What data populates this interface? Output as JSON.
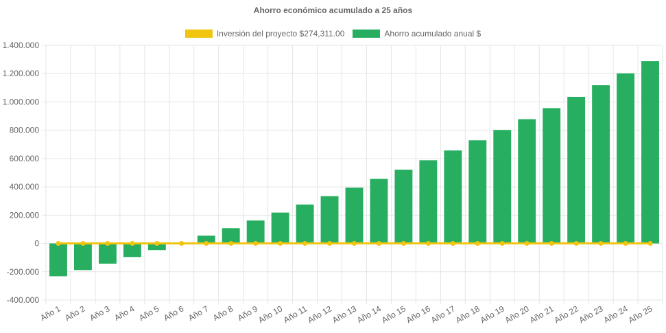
{
  "chart_data": {
    "type": "bar",
    "title": "Ahorro económico acumulado a 25 años",
    "categories": [
      "Año 1",
      "Año 2",
      "Año 3",
      "Año 4",
      "Año 5",
      "Año 6",
      "Año 7",
      "Año 8",
      "Año 9",
      "Año 10",
      "Año 11",
      "Año 12",
      "Año 13",
      "Año 14",
      "Año 15",
      "Año 16",
      "Año 17",
      "Año 18",
      "Año 19",
      "Año 20",
      "Año 21",
      "Año 22",
      "Año 23",
      "Año 24",
      "Año 25"
    ],
    "ylim": [
      -400000,
      1400000
    ],
    "y_ticks": [
      -400000,
      -200000,
      0,
      200000,
      400000,
      600000,
      800000,
      1000000,
      1200000,
      1400000
    ],
    "y_tick_labels": [
      "-400.000",
      "-200.000",
      "0",
      "200.000",
      "400.000",
      "600.000",
      "800.000",
      "1.000.000",
      "1.200.000",
      "1.400.000"
    ],
    "grid": true,
    "legend_position": "top",
    "series": [
      {
        "name": "Inversión del proyecto $274,311.00",
        "type": "line",
        "color": "#f1c40f",
        "values": [
          0,
          0,
          0,
          0,
          0,
          0,
          0,
          0,
          0,
          0,
          0,
          0,
          0,
          0,
          0,
          0,
          0,
          0,
          0,
          0,
          0,
          0,
          0,
          0,
          0
        ]
      },
      {
        "name": "Ahorro acumulado anual $",
        "type": "bar",
        "color": "#27ae60",
        "values": [
          -232000,
          -188000,
          -143000,
          -96000,
          -47000,
          3000,
          55000,
          108000,
          162000,
          218000,
          275000,
          334000,
          394000,
          456000,
          521000,
          588000,
          657000,
          729000,
          802000,
          878000,
          956000,
          1036000,
          1118000,
          1202000,
          1288000
        ]
      }
    ]
  }
}
